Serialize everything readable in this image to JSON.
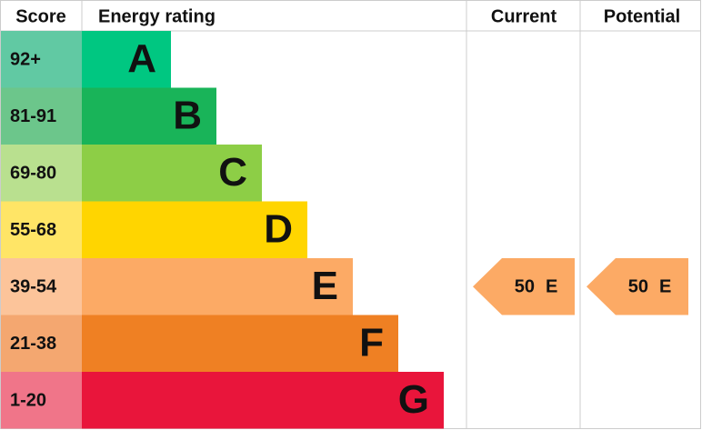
{
  "headers": {
    "score": "Score",
    "rating": "Energy rating",
    "current": "Current",
    "potential": "Potential"
  },
  "bands": [
    {
      "score": "92+",
      "letter": "A",
      "color": "#00c781",
      "score_color": "#61c9a3"
    },
    {
      "score": "81-91",
      "letter": "B",
      "color": "#19b459",
      "score_color": "#6cc68b"
    },
    {
      "score": "69-80",
      "letter": "C",
      "color": "#8dce46",
      "score_color": "#b9e08f"
    },
    {
      "score": "55-68",
      "letter": "D",
      "color": "#ffd500",
      "score_color": "#ffe566"
    },
    {
      "score": "39-54",
      "letter": "E",
      "color": "#fcaa65",
      "score_color": "#fcc49a"
    },
    {
      "score": "21-38",
      "letter": "F",
      "color": "#ef8023",
      "score_color": "#f4a770"
    },
    {
      "score": "1-20",
      "letter": "G",
      "color": "#e9153b",
      "score_color": "#f07589"
    }
  ],
  "current": {
    "score": 50,
    "letter": "E"
  },
  "potential": {
    "score": 50,
    "letter": "E"
  }
}
